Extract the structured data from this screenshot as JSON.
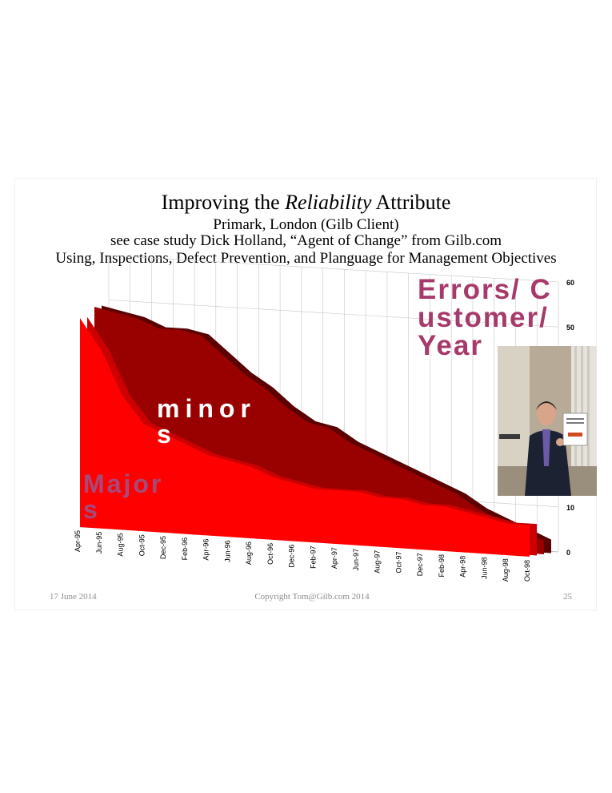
{
  "slide": {
    "title_pre": "Improving the ",
    "title_italic": "Reliability",
    "title_post": " Attribute",
    "subtitle_1": "Primark, London (Gilb Client)",
    "subtitle_2": "see case study Dick Holland, “Agent of Change” from Gilb.com",
    "subtitle_3": "Using, Inspections, Defect Prevention, and Planguage for Management Objectives",
    "footer_date": "17 June 2014",
    "footer_copyright": "Copyright Tom@Gilb.com 2014",
    "footer_page": "25"
  },
  "labels": {
    "errors": "Errors/ Customer/ Year",
    "minors": "minors",
    "majors": "Majors"
  },
  "colors": {
    "majors": "#ff0000",
    "minors": "#990000",
    "grid": "#c8c8c8",
    "label_purple": "#a63a6a"
  },
  "chart_data": {
    "type": "area",
    "title": "",
    "x": [
      "Apr-95",
      "Jun-95",
      "Aug-95",
      "Oct-95",
      "Dec-95",
      "Feb-96",
      "Apr-96",
      "Jun-96",
      "Aug-96",
      "Oct-96",
      "Dec-96",
      "Feb-97",
      "Apr-97",
      "Jun-97",
      "Aug-97",
      "Oct-97",
      "Dec-97",
      "Feb-98",
      "Apr-98",
      "Jun-98",
      "Aug-98",
      "Oct-98"
    ],
    "series": [
      {
        "name": "minors",
        "values": [
          49,
          48,
          47,
          45,
          45,
          44,
          40,
          36,
          33,
          29,
          26,
          25,
          22,
          20,
          18,
          16,
          14,
          12,
          9,
          7,
          5,
          3
        ]
      },
      {
        "name": "Majors",
        "values": [
          47,
          40,
          30,
          24,
          22,
          20,
          18,
          17,
          16,
          14,
          13,
          12,
          12,
          12,
          11,
          11,
          10,
          10,
          9,
          8,
          7,
          7
        ]
      }
    ],
    "ylabel": "Errors/ Customer/ Year",
    "ylim": [
      0,
      60
    ],
    "yticks": [
      0,
      10,
      50,
      60
    ],
    "grid": true
  }
}
